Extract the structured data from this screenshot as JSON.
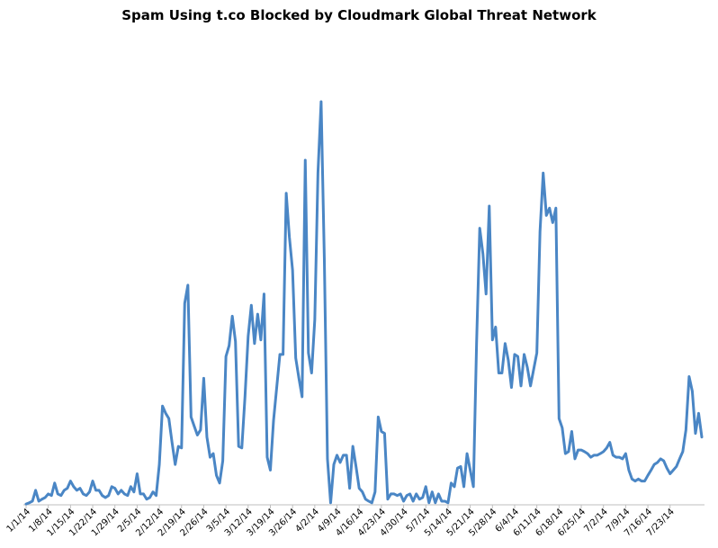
{
  "chart_data": {
    "type": "line",
    "title": "Spam Using t.co Blocked by Cloudmark Global Threat Network",
    "xlabel": "",
    "ylabel": "",
    "x_tick_labels": [
      "1/1/14",
      "1/8/14",
      "1/15/14",
      "1/22/14",
      "1/29/14",
      "2/5/14",
      "2/12/14",
      "2/19/14",
      "2/26/14",
      "3/5/14",
      "3/12/14",
      "3/19/14",
      "3/26/14",
      "4/2/14",
      "4/9/14",
      "4/16/14",
      "4/23/14",
      "4/30/14",
      "5/7/14",
      "5/14/14",
      "5/21/14",
      "5/28/14",
      "6/4/14",
      "6/11/14",
      "6/18/14",
      "6/25/14",
      "7/2/14",
      "7/9/14",
      "7/16/14",
      "7/23/14"
    ],
    "y_axis_labels_shown": false,
    "ylim": [
      0,
      100
    ],
    "grid": false,
    "legend": "none",
    "color": "#4a86c5",
    "series": [
      {
        "x_start": "1/1/14",
        "x_step_days": 1,
        "values": [
          0.2,
          0.5,
          0.9,
          3.6,
          0.9,
          1.4,
          1.8,
          2.7,
          2.3,
          5.4,
          2.7,
          2.3,
          3.6,
          4.1,
          5.9,
          4.5,
          3.6,
          4.1,
          2.7,
          2.3,
          3.2,
          5.9,
          3.6,
          3.6,
          2.3,
          1.8,
          2.3,
          4.5,
          4.1,
          2.7,
          3.6,
          2.7,
          2.3,
          4.5,
          3.2,
          7.7,
          2.7,
          2.7,
          1.4,
          1.8,
          3.2,
          2.3,
          10,
          24.5,
          22.7,
          21.4,
          15.5,
          10,
          14.5,
          14.1,
          50,
          54.5,
          21.8,
          19.5,
          17.3,
          18.6,
          31.4,
          16.8,
          11.8,
          12.7,
          7.3,
          5.4,
          10.9,
          36.8,
          39.5,
          46.8,
          40.5,
          14.5,
          14.1,
          26.8,
          41.8,
          49.5,
          40,
          47.3,
          40.9,
          52.3,
          11.8,
          8.6,
          20.9,
          29.1,
          37.3,
          37.3,
          77.3,
          66.4,
          58.2,
          36.4,
          31.4,
          26.8,
          85.5,
          37.7,
          32.7,
          45.9,
          82.3,
          100,
          61.4,
          11.4,
          0.5,
          10,
          12.3,
          10.5,
          12.3,
          12.3,
          4.1,
          14.5,
          9.5,
          4.1,
          3.2,
          1.4,
          0.9,
          0.5,
          3.2,
          21.8,
          18.2,
          17.7,
          1.4,
          2.7,
          2.7,
          2.3,
          2.7,
          0.9,
          2.3,
          2.7,
          0.9,
          2.7,
          1.4,
          1.8,
          4.5,
          0.5,
          3.2,
          0.5,
          2.7,
          0.9,
          0.9,
          0.5,
          5.4,
          4.5,
          9.1,
          9.5,
          4.5,
          12.7,
          8.6,
          4.5,
          40,
          68.6,
          62.3,
          52.3,
          74.1,
          40.9,
          44.1,
          32.7,
          32.7,
          40,
          35.9,
          29.1,
          37.3,
          36.8,
          29.5,
          37.3,
          34.1,
          29.5,
          33.6,
          37.7,
          67.8,
          82.3,
          71.8,
          73.6,
          70,
          73.6,
          21.4,
          19.1,
          12.7,
          13.2,
          18.2,
          11.4,
          13.6,
          13.6,
          13.2,
          12.7,
          11.8,
          12.3,
          12.3,
          12.7,
          13.2,
          14.1,
          15.5,
          12.3,
          11.8,
          11.8,
          11.4,
          12.7,
          8.6,
          6.4,
          5.9,
          6.4,
          5.9,
          5.9,
          7.3,
          8.6,
          10,
          10.5,
          11.4,
          10.9,
          9.1,
          7.7,
          8.6,
          9.5,
          11.4,
          13.2,
          18.6,
          31.8,
          28.2,
          17.7,
          22.7,
          16.8
        ]
      }
    ]
  }
}
